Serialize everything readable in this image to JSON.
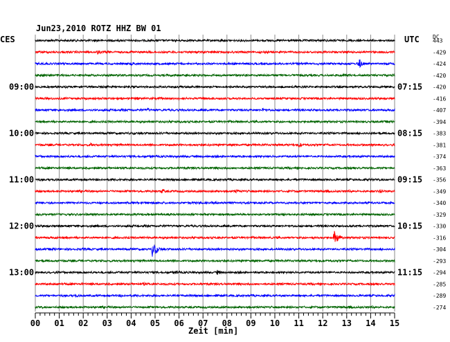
{
  "header": {
    "station": "Jun23,2010   ROTZ HHZ BW 01",
    "left_zone": "CES",
    "right_zone": "UTC",
    "offset_label": "DC"
  },
  "chart_data": {
    "type": "line",
    "subtype": "helicorder",
    "xlabel": "Zeit [min]",
    "x_ticks": [
      "00",
      "01",
      "02",
      "03",
      "04",
      "05",
      "06",
      "07",
      "08",
      "09",
      "10",
      "11",
      "12",
      "13",
      "14",
      "15"
    ],
    "xlim": [
      0,
      15
    ],
    "trace_colors": [
      "#000000",
      "#ff0000",
      "#0000ff",
      "#006400"
    ],
    "left_hour_labels": [
      {
        "row": 4,
        "label": "09:00"
      },
      {
        "row": 8,
        "label": "10:00"
      },
      {
        "row": 12,
        "label": "11:00"
      },
      {
        "row": 16,
        "label": "12:00"
      },
      {
        "row": 20,
        "label": "13:00"
      }
    ],
    "right_hour_labels": [
      {
        "row": 4,
        "label": "07:15"
      },
      {
        "row": 8,
        "label": "08:15"
      },
      {
        "row": 12,
        "label": "09:15"
      },
      {
        "row": 16,
        "label": "10:15"
      },
      {
        "row": 20,
        "label": "11:15"
      }
    ],
    "dc_offsets": [
      "443",
      "-429",
      "-424",
      "-420",
      "-420",
      "-416",
      "-407",
      "-394",
      "-383",
      "-381",
      "-374",
      "-363",
      "-356",
      "-349",
      "-340",
      "-329",
      "-330",
      "-316",
      "-304",
      "-293",
      "-294",
      "-285",
      "-289",
      "-274"
    ],
    "events": [
      {
        "row": 1,
        "minute": 2.6,
        "amp": 4
      },
      {
        "row": 1,
        "minute": 4.0,
        "amp": 3
      },
      {
        "row": 2,
        "minute": 4.0,
        "amp": 3
      },
      {
        "row": 2,
        "minute": 13.5,
        "amp": 8
      },
      {
        "row": 3,
        "minute": 12.8,
        "amp": 3
      },
      {
        "row": 6,
        "minute": 4.7,
        "amp": 3
      },
      {
        "row": 6,
        "minute": 9.5,
        "amp": 3
      },
      {
        "row": 9,
        "minute": 11.0,
        "amp": 4
      },
      {
        "row": 9,
        "minute": 2.3,
        "amp": 3
      },
      {
        "row": 13,
        "minute": 5.3,
        "amp": 4
      },
      {
        "row": 13,
        "minute": 8.4,
        "amp": 4
      },
      {
        "row": 13,
        "minute": 14.4,
        "amp": 4
      },
      {
        "row": 17,
        "minute": 12.5,
        "amp": 12
      },
      {
        "row": 18,
        "minute": 4.9,
        "amp": 14
      },
      {
        "row": 18,
        "minute": 2.0,
        "amp": 3
      },
      {
        "row": 20,
        "minute": 7.6,
        "amp": 4
      },
      {
        "row": 20,
        "minute": 5.9,
        "amp": 3
      },
      {
        "row": 21,
        "minute": 4.5,
        "amp": 3
      },
      {
        "row": 22,
        "minute": 1.7,
        "amp": 3
      },
      {
        "row": 22,
        "minute": 3.6,
        "amp": 3
      }
    ]
  }
}
